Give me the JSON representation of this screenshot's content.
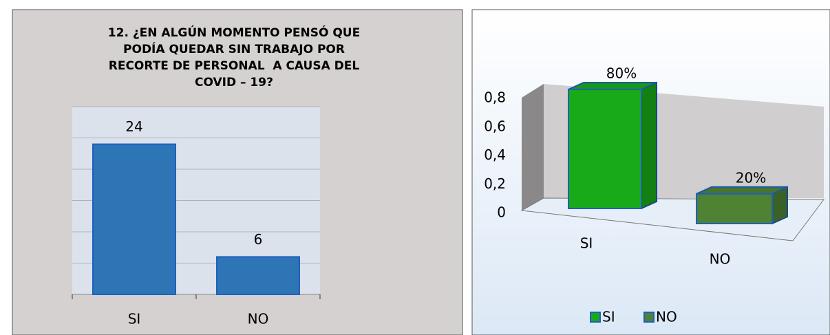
{
  "chart_data": [
    {
      "type": "bar",
      "title": [
        "12. ¿EN ALGÚN MOMENTO PENSÓ QUE",
        "PODÍA QUEDAR SIN TRABAJO POR",
        "RECORTE DE PERSONAL  A CAUSA DEL",
        "COVID – 19?"
      ],
      "categories": [
        "SI",
        "NO"
      ],
      "values": [
        24,
        6
      ],
      "color": "#2e75b6",
      "ylim": [
        0,
        30
      ],
      "yticks": [
        0,
        5,
        10,
        15,
        20,
        25,
        30
      ],
      "grid": true
    },
    {
      "type": "bar3d",
      "categories": [
        "SI",
        "NO"
      ],
      "series": [
        {
          "name": "SI",
          "color": "#19aa19"
        },
        {
          "name": "NO",
          "color": "#4f8232"
        }
      ],
      "values": [
        0.8,
        0.2
      ],
      "value_labels": [
        "80%",
        "20%"
      ],
      "ylim": [
        0,
        0.8
      ],
      "yticks": [
        {
          "value": 0,
          "label": "0"
        },
        {
          "value": 0.2,
          "label": "0,2"
        },
        {
          "value": 0.4,
          "label": "0,4"
        },
        {
          "value": 0.6,
          "label": "0,6"
        },
        {
          "value": 0.8,
          "label": "0,8"
        }
      ],
      "legend": "bottom"
    }
  ]
}
